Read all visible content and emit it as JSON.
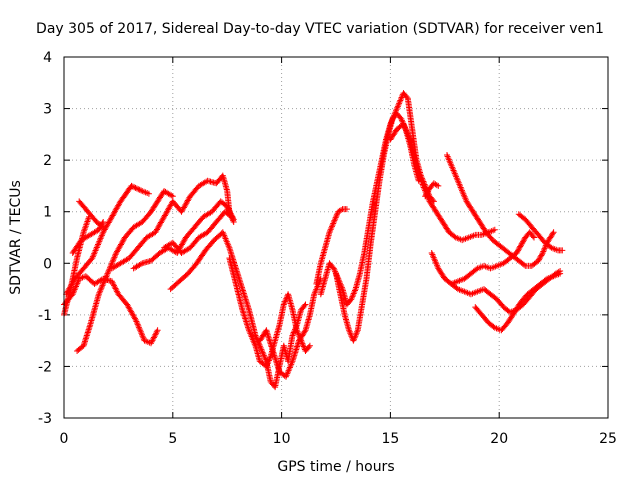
{
  "chart_data": {
    "type": "scatter",
    "title": "Day 305 of 2017, Sidereal Day-to-day VTEC variation (SDTVAR) for receiver ven1",
    "xlabel": "GPS time / hours",
    "ylabel": "SDTVAR / TECUs",
    "xlim": [
      0,
      25
    ],
    "ylim": [
      -3,
      4
    ],
    "xticks": [
      "0",
      "5",
      "10",
      "15",
      "20",
      "25"
    ],
    "yticks": [
      "-3",
      "-2",
      "-1",
      "0",
      "1",
      "2",
      "3",
      "4"
    ],
    "grid": true,
    "marker": "+",
    "marker_color": "#ff0000",
    "tracks": [
      [
        [
          0.0,
          -1.0
        ],
        [
          0.3,
          -0.5
        ],
        [
          0.6,
          0.1
        ],
        [
          0.9,
          0.6
        ],
        [
          1.15,
          0.9
        ]
      ],
      [
        [
          0.0,
          -0.8
        ],
        [
          0.4,
          -0.6
        ],
        [
          0.7,
          -0.3
        ],
        [
          1.0,
          -0.25
        ],
        [
          1.4,
          -0.4
        ],
        [
          1.8,
          -0.3
        ],
        [
          2.2,
          -0.35
        ],
        [
          2.5,
          -0.6
        ],
        [
          2.9,
          -0.8
        ],
        [
          3.3,
          -1.1
        ],
        [
          3.7,
          -1.5
        ],
        [
          4.0,
          -1.55
        ],
        [
          4.3,
          -1.3
        ]
      ],
      [
        [
          0.1,
          -0.6
        ],
        [
          0.5,
          -0.3
        ],
        [
          0.9,
          -0.1
        ],
        [
          1.3,
          0.1
        ],
        [
          1.8,
          0.6
        ],
        [
          2.2,
          0.9
        ],
        [
          2.6,
          1.2
        ],
        [
          3.1,
          1.5
        ],
        [
          3.6,
          1.4
        ],
        [
          3.9,
          1.35
        ]
      ],
      [
        [
          0.4,
          0.2
        ],
        [
          0.8,
          0.45
        ],
        [
          1.2,
          0.55
        ],
        [
          1.6,
          0.65
        ],
        [
          1.8,
          0.8
        ]
      ],
      [
        [
          0.6,
          -1.7
        ],
        [
          0.9,
          -1.6
        ],
        [
          1.2,
          -1.2
        ],
        [
          1.6,
          -0.6
        ],
        [
          2.0,
          -0.2
        ],
        [
          2.4,
          0.2
        ],
        [
          2.8,
          0.5
        ],
        [
          3.2,
          0.7
        ],
        [
          3.6,
          0.8
        ],
        [
          4.0,
          1.0
        ],
        [
          4.3,
          1.2
        ],
        [
          4.6,
          1.4
        ],
        [
          5.0,
          1.3
        ]
      ],
      [
        [
          0.7,
          1.2
        ],
        [
          1.1,
          1.0
        ],
        [
          1.5,
          0.8
        ],
        [
          1.8,
          0.7
        ]
      ],
      [
        [
          2.2,
          -0.1
        ],
        [
          2.6,
          0.0
        ],
        [
          3.0,
          0.1
        ],
        [
          3.4,
          0.3
        ],
        [
          3.8,
          0.5
        ],
        [
          4.2,
          0.6
        ],
        [
          4.6,
          0.9
        ],
        [
          5.0,
          1.2
        ],
        [
          5.4,
          1.0
        ],
        [
          5.8,
          1.3
        ],
        [
          6.2,
          1.5
        ],
        [
          6.6,
          1.6
        ],
        [
          7.0,
          1.55
        ],
        [
          7.3,
          1.7
        ],
        [
          7.5,
          1.4
        ],
        [
          7.6,
          1.0
        ],
        [
          7.8,
          0.8
        ]
      ],
      [
        [
          3.2,
          -0.1
        ],
        [
          3.6,
          0.0
        ],
        [
          4.0,
          0.05
        ],
        [
          4.4,
          0.2
        ],
        [
          4.8,
          0.3
        ],
        [
          5.2,
          0.2
        ],
        [
          5.6,
          0.5
        ],
        [
          6.0,
          0.7
        ],
        [
          6.4,
          0.9
        ],
        [
          6.8,
          1.0
        ],
        [
          7.2,
          1.2
        ],
        [
          7.5,
          1.1
        ],
        [
          7.8,
          0.85
        ]
      ],
      [
        [
          4.6,
          0.3
        ],
        [
          5.0,
          0.4
        ],
        [
          5.4,
          0.2
        ],
        [
          5.8,
          0.3
        ],
        [
          6.2,
          0.5
        ],
        [
          6.6,
          0.6
        ],
        [
          7.0,
          0.8
        ],
        [
          7.4,
          1.0
        ],
        [
          7.7,
          0.9
        ]
      ],
      [
        [
          4.9,
          -0.5
        ],
        [
          5.3,
          -0.35
        ],
        [
          5.7,
          -0.2
        ],
        [
          6.1,
          0.0
        ],
        [
          6.5,
          0.25
        ],
        [
          6.9,
          0.45
        ],
        [
          7.3,
          0.6
        ],
        [
          7.6,
          0.3
        ],
        [
          7.9,
          -0.1
        ],
        [
          8.2,
          -0.5
        ],
        [
          8.5,
          -0.9
        ],
        [
          8.8,
          -1.4
        ],
        [
          9.1,
          -1.7
        ],
        [
          9.3,
          -1.9
        ],
        [
          9.5,
          -2.3
        ],
        [
          9.7,
          -2.4
        ],
        [
          9.9,
          -2.0
        ],
        [
          10.1,
          -1.6
        ],
        [
          10.3,
          -1.9
        ],
        [
          10.5,
          -1.4
        ],
        [
          10.7,
          -1.2
        ],
        [
          10.9,
          -0.9
        ],
        [
          11.1,
          -0.8
        ]
      ],
      [
        [
          7.6,
          0.1
        ],
        [
          7.9,
          -0.4
        ],
        [
          8.2,
          -0.9
        ],
        [
          8.5,
          -1.3
        ],
        [
          8.8,
          -1.6
        ],
        [
          9.0,
          -1.9
        ],
        [
          9.3,
          -2.0
        ],
        [
          9.5,
          -1.8
        ],
        [
          9.7,
          -1.5
        ],
        [
          9.9,
          -1.2
        ],
        [
          10.1,
          -0.8
        ],
        [
          10.3,
          -0.6
        ],
        [
          10.5,
          -0.9
        ],
        [
          10.7,
          -1.3
        ],
        [
          10.9,
          -1.5
        ],
        [
          11.1,
          -1.7
        ],
        [
          11.3,
          -1.6
        ]
      ],
      [
        [
          9.0,
          -1.5
        ],
        [
          9.3,
          -1.3
        ],
        [
          9.6,
          -1.7
        ],
        [
          9.9,
          -2.1
        ],
        [
          10.2,
          -2.2
        ],
        [
          10.5,
          -1.9
        ],
        [
          10.8,
          -1.5
        ],
        [
          11.1,
          -1.3
        ],
        [
          11.3,
          -1.0
        ],
        [
          11.5,
          -0.6
        ],
        [
          11.8,
          -0.3
        ]
      ],
      [
        [
          11.6,
          -0.4
        ],
        [
          11.8,
          0.0
        ],
        [
          12.0,
          0.3
        ],
        [
          12.2,
          0.6
        ],
        [
          12.4,
          0.8
        ],
        [
          12.6,
          1.0
        ],
        [
          12.8,
          1.05
        ],
        [
          13.0,
          1.05
        ]
      ],
      [
        [
          11.8,
          -0.6
        ],
        [
          12.0,
          -0.3
        ],
        [
          12.2,
          0.0
        ],
        [
          12.4,
          -0.1
        ],
        [
          12.6,
          -0.3
        ],
        [
          12.8,
          -0.5
        ],
        [
          13.0,
          -0.8
        ],
        [
          13.2,
          -0.7
        ],
        [
          13.4,
          -0.5
        ],
        [
          13.6,
          -0.2
        ],
        [
          13.8,
          0.2
        ],
        [
          14.0,
          0.7
        ],
        [
          14.2,
          1.2
        ],
        [
          14.4,
          1.6
        ],
        [
          14.6,
          2.0
        ],
        [
          14.8,
          2.4
        ],
        [
          15.0,
          2.7
        ],
        [
          15.2,
          2.9
        ],
        [
          15.4,
          3.1
        ],
        [
          15.6,
          3.3
        ],
        [
          15.8,
          3.2
        ],
        [
          16.0,
          2.6
        ],
        [
          16.2,
          2.0
        ],
        [
          16.4,
          1.7
        ],
        [
          16.6,
          1.5
        ],
        [
          16.8,
          1.3
        ],
        [
          17.0,
          1.2
        ]
      ],
      [
        [
          12.5,
          -0.2
        ],
        [
          12.7,
          -0.6
        ],
        [
          12.9,
          -1.0
        ],
        [
          13.1,
          -1.3
        ],
        [
          13.3,
          -1.5
        ],
        [
          13.5,
          -1.3
        ],
        [
          13.7,
          -0.8
        ],
        [
          13.9,
          -0.3
        ],
        [
          14.1,
          0.4
        ],
        [
          14.3,
          1.0
        ],
        [
          14.5,
          1.6
        ],
        [
          14.7,
          2.1
        ],
        [
          14.9,
          2.5
        ],
        [
          15.1,
          2.8
        ],
        [
          15.3,
          2.9
        ],
        [
          15.5,
          2.8
        ],
        [
          15.7,
          2.6
        ],
        [
          15.9,
          2.3
        ],
        [
          16.1,
          1.9
        ],
        [
          16.3,
          1.6
        ]
      ],
      [
        [
          15.0,
          2.4
        ],
        [
          15.3,
          2.6
        ],
        [
          15.6,
          2.7
        ],
        [
          15.9,
          2.4
        ],
        [
          16.2,
          1.9
        ],
        [
          16.5,
          1.5
        ],
        [
          16.8,
          1.2
        ],
        [
          17.1,
          1.0
        ],
        [
          17.4,
          0.8
        ],
        [
          17.7,
          0.6
        ],
        [
          18.0,
          0.5
        ],
        [
          18.3,
          0.45
        ],
        [
          18.6,
          0.5
        ],
        [
          18.9,
          0.55
        ],
        [
          19.2,
          0.55
        ],
        [
          19.5,
          0.6
        ],
        [
          19.8,
          0.65
        ]
      ],
      [
        [
          16.6,
          1.3
        ],
        [
          16.8,
          1.45
        ],
        [
          17.0,
          1.55
        ],
        [
          17.2,
          1.5
        ]
      ],
      [
        [
          17.6,
          2.1
        ],
        [
          17.9,
          1.8
        ],
        [
          18.2,
          1.5
        ],
        [
          18.5,
          1.2
        ],
        [
          18.8,
          1.0
        ],
        [
          19.1,
          0.8
        ],
        [
          19.4,
          0.6
        ],
        [
          19.7,
          0.45
        ],
        [
          20.0,
          0.35
        ],
        [
          20.3,
          0.25
        ],
        [
          20.6,
          0.15
        ],
        [
          20.9,
          0.05
        ],
        [
          21.2,
          -0.05
        ],
        [
          21.5,
          -0.05
        ],
        [
          21.8,
          0.05
        ],
        [
          22.0,
          0.2
        ],
        [
          22.2,
          0.4
        ],
        [
          22.5,
          0.6
        ]
      ],
      [
        [
          16.9,
          0.2
        ],
        [
          17.2,
          -0.1
        ],
        [
          17.5,
          -0.3
        ],
        [
          17.8,
          -0.4
        ],
        [
          18.1,
          -0.35
        ],
        [
          18.4,
          -0.3
        ],
        [
          18.7,
          -0.2
        ],
        [
          19.0,
          -0.1
        ],
        [
          19.3,
          -0.05
        ],
        [
          19.6,
          -0.1
        ],
        [
          19.9,
          -0.05
        ],
        [
          20.2,
          0.0
        ],
        [
          20.5,
          0.1
        ],
        [
          20.8,
          0.2
        ],
        [
          21.0,
          0.35
        ],
        [
          21.2,
          0.5
        ],
        [
          21.4,
          0.6
        ],
        [
          21.6,
          0.5
        ]
      ],
      [
        [
          17.8,
          -0.4
        ],
        [
          18.1,
          -0.5
        ],
        [
          18.4,
          -0.55
        ],
        [
          18.7,
          -0.6
        ],
        [
          19.0,
          -0.55
        ],
        [
          19.3,
          -0.5
        ],
        [
          19.6,
          -0.6
        ],
        [
          19.9,
          -0.7
        ],
        [
          20.2,
          -0.85
        ],
        [
          20.5,
          -0.95
        ],
        [
          20.8,
          -0.9
        ],
        [
          21.1,
          -0.8
        ],
        [
          21.4,
          -0.65
        ],
        [
          21.7,
          -0.5
        ],
        [
          22.0,
          -0.4
        ],
        [
          22.3,
          -0.3
        ],
        [
          22.6,
          -0.2
        ],
        [
          22.8,
          -0.15
        ]
      ],
      [
        [
          18.9,
          -0.85
        ],
        [
          19.2,
          -1.0
        ],
        [
          19.5,
          -1.15
        ],
        [
          19.8,
          -1.25
        ],
        [
          20.1,
          -1.3
        ],
        [
          20.4,
          -1.15
        ],
        [
          20.7,
          -0.95
        ],
        [
          21.0,
          -0.75
        ],
        [
          21.3,
          -0.6
        ],
        [
          21.6,
          -0.5
        ],
        [
          21.9,
          -0.4
        ],
        [
          22.2,
          -0.3
        ],
        [
          22.5,
          -0.25
        ],
        [
          22.8,
          -0.2
        ]
      ],
      [
        [
          20.9,
          0.95
        ],
        [
          21.2,
          0.85
        ],
        [
          21.5,
          0.7
        ],
        [
          21.8,
          0.55
        ],
        [
          22.1,
          0.4
        ],
        [
          22.4,
          0.3
        ],
        [
          22.7,
          0.25
        ],
        [
          22.9,
          0.25
        ]
      ]
    ]
  }
}
